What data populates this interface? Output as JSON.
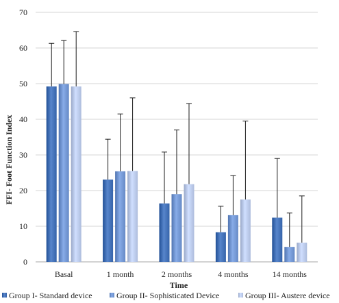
{
  "chart_data": {
    "type": "bar",
    "title": "",
    "xlabel": "Time",
    "ylabel": "FFI- Foot Function Index",
    "ylim": [
      0,
      70
    ],
    "yticks": [
      0,
      10,
      20,
      30,
      40,
      50,
      60,
      70
    ],
    "grid": true,
    "legend_position": "bottom",
    "categories": [
      "Basal",
      "1 month",
      "2 months",
      "4 months",
      "14 months"
    ],
    "series": [
      {
        "name": "Group I- Standard device",
        "color": "#3f6db3",
        "values": [
          49.2,
          23.1,
          16.4,
          8.3,
          12.4
        ],
        "error_upper": [
          61.3,
          34.4,
          30.8,
          15.6,
          29.0
        ]
      },
      {
        "name": "Group II- Sophisticated Device",
        "color": "#6f93cf",
        "values": [
          49.9,
          25.4,
          19.0,
          13.1,
          4.2
        ],
        "error_upper": [
          62.1,
          41.5,
          37.0,
          24.2,
          13.7
        ]
      },
      {
        "name": "Group III- Austere device",
        "color": "#b7c6e6",
        "values": [
          49.2,
          25.5,
          21.8,
          17.5,
          5.4
        ],
        "error_upper": [
          64.6,
          46.0,
          44.4,
          39.5,
          18.5
        ]
      }
    ]
  }
}
